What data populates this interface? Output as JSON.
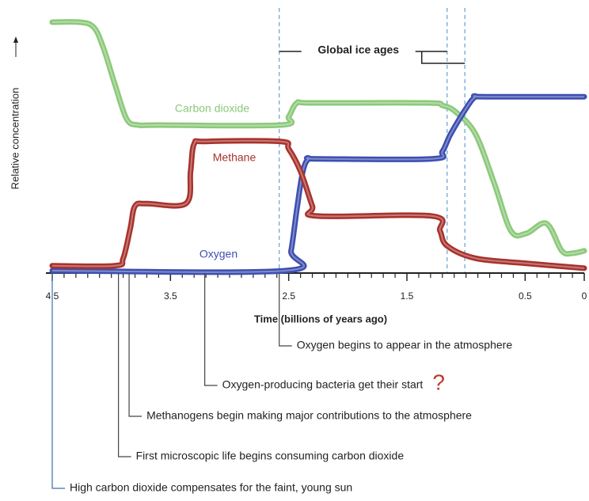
{
  "chart_data": {
    "type": "line",
    "xlabel": "Time (billions of years ago)",
    "ylabel": "Relative concentration",
    "xlim": [
      4.5,
      0
    ],
    "ylim": [
      0,
      1
    ],
    "xticks": [
      4.5,
      3.5,
      2.5,
      1.5,
      0.5,
      0
    ],
    "xminorticks": [
      4.4,
      4.3,
      4.2,
      4.1,
      4.0,
      3.9,
      3.8,
      3.7,
      3.6,
      3.4,
      3.3,
      3.2,
      3.1,
      3.0,
      2.9,
      2.8,
      2.7,
      2.6,
      2.4,
      2.3,
      2.2,
      2.1,
      2.0,
      1.9,
      1.8,
      1.7,
      1.6,
      1.4,
      1.3,
      1.2,
      1.1,
      1.0,
      0.9,
      0.8,
      0.7,
      0.6,
      0.4,
      0.3,
      0.2,
      0.1
    ],
    "series": [
      {
        "name": "Carbon dioxide",
        "color": "#8cc97a",
        "x": [
          4.5,
          4.27,
          4.15,
          4.07,
          3.97,
          3.87,
          3.77,
          3.6,
          2.57,
          2.5,
          2.43,
          2.3,
          1.33,
          1.2,
          1.09,
          0.92,
          0.76,
          0.62,
          0.49,
          0.32,
          0.19,
          0.1,
          0
        ],
        "values": [
          1.0,
          1.0,
          0.98,
          0.9,
          0.75,
          0.61,
          0.586,
          0.586,
          0.586,
          0.62,
          0.675,
          0.675,
          0.675,
          0.665,
          0.64,
          0.55,
          0.35,
          0.16,
          0.15,
          0.19,
          0.08,
          0.07,
          0.08
        ]
      },
      {
        "name": "Methane",
        "color": "#a8322d",
        "x": [
          4.5,
          3.97,
          3.9,
          3.84,
          3.8,
          3.7,
          3.37,
          3.33,
          3.3,
          3.2,
          2.57,
          2.5,
          2.4,
          2.3,
          2.26,
          1.29,
          1.22,
          1.16,
          0.92,
          0.5,
          0
        ],
        "values": [
          0.02,
          0.02,
          0.05,
          0.17,
          0.26,
          0.27,
          0.27,
          0.4,
          0.51,
          0.52,
          0.52,
          0.49,
          0.4,
          0.26,
          0.22,
          0.22,
          0.16,
          0.1,
          0.05,
          0.03,
          0.01
        ]
      },
      {
        "name": "Oxygen",
        "color": "#3d4fb0",
        "x": [
          4.5,
          2.53,
          2.48,
          2.43,
          2.38,
          2.33,
          2.25,
          1.29,
          1.2,
          1.13,
          0.99,
          0.92,
          0.85,
          0
        ],
        "values": [
          0.0,
          0.0,
          0.08,
          0.25,
          0.4,
          0.45,
          0.45,
          0.45,
          0.48,
          0.55,
          0.66,
          0.7,
          0.7,
          0.7
        ]
      }
    ],
    "ice_ages": {
      "label": "Global ice ages",
      "x": [
        2.58,
        1.16,
        1.01
      ]
    },
    "annotations": [
      {
        "text": "Oxygen begins to appear in the atmosphere",
        "x": 2.58
      },
      {
        "text": "Oxygen-producing bacteria get their start",
        "x": 3.21,
        "extra": "?"
      },
      {
        "text": "Methanogens begin making major contributions to the atmosphere",
        "x": 3.85
      },
      {
        "text": "First microscopic life begins consuming carbon dioxide",
        "x": 3.94
      },
      {
        "text": "High carbon dioxide compensates for the faint, young sun",
        "x": 4.5
      }
    ]
  }
}
